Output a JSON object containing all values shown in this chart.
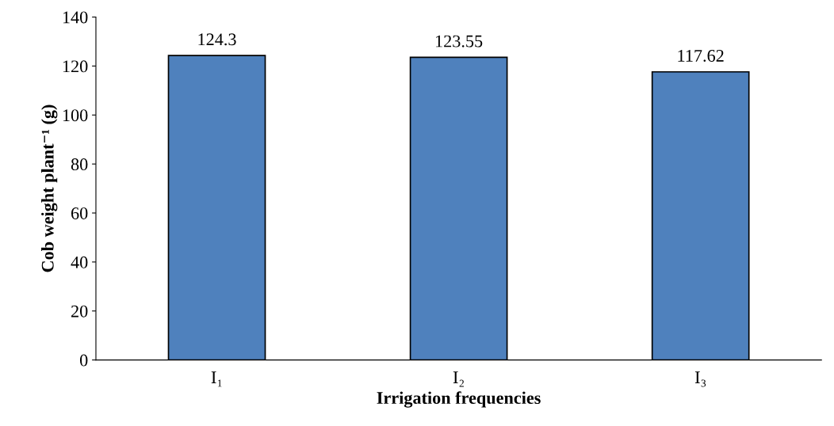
{
  "chart_data": {
    "type": "bar",
    "xlabel": "Irrigation frequencies",
    "ylabel": "Cob weight plant⁻¹ (g)",
    "categories": [
      "I₁",
      "I₂",
      "I₃"
    ],
    "values": [
      124.3,
      123.55,
      117.62
    ],
    "color": "#4f81bd",
    "ylim": [
      0,
      140
    ],
    "yticks": [
      0,
      20,
      40,
      60,
      80,
      100,
      120,
      140
    ],
    "data_labels": true
  }
}
